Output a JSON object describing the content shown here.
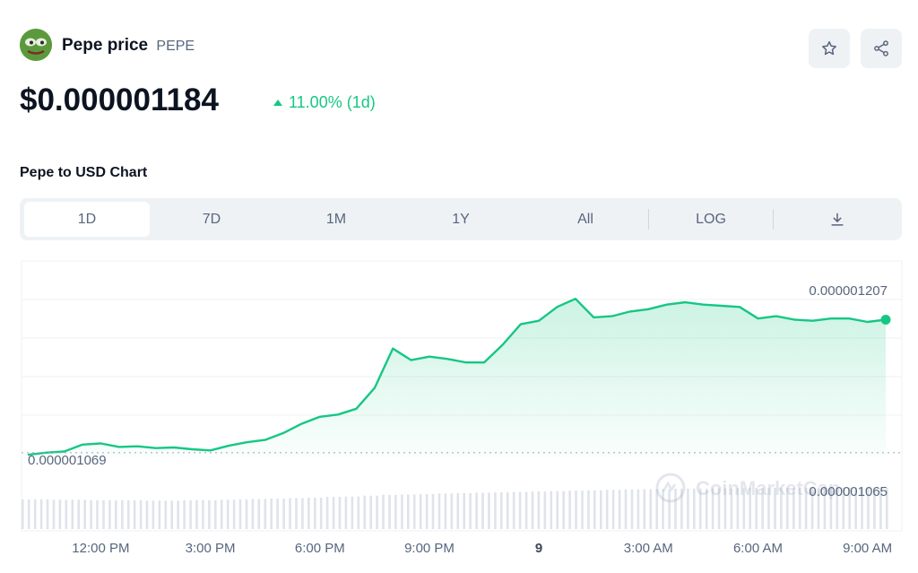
{
  "header": {
    "name": "Pepe price",
    "symbol": "PEPE",
    "logo_icon": "pepe-frog-logo-icon",
    "favorite_icon": "star-icon",
    "share_icon": "share-icon"
  },
  "price": {
    "value": "$0.000001184",
    "change": "11.00% (1d)",
    "change_direction": "up",
    "change_color": "#16c784"
  },
  "chart_section": {
    "title": "Pepe to USD Chart",
    "tabs": [
      {
        "label": "1D",
        "active": true
      },
      {
        "label": "7D",
        "active": false
      },
      {
        "label": "1M",
        "active": false
      },
      {
        "label": "1Y",
        "active": false
      },
      {
        "label": "All",
        "active": false
      },
      {
        "label": "LOG",
        "active": false
      }
    ],
    "download_icon": "download-icon"
  },
  "chart_data": {
    "type": "area",
    "title": "",
    "xlabel": "",
    "ylabel": "",
    "series": [
      {
        "color": "#16c784",
        "x": [
          "10:00 AM",
          "10:30 AM",
          "11:00 AM",
          "11:30 AM",
          "12:00 PM",
          "12:30 PM",
          "1:00 PM",
          "1:30 PM",
          "2:00 PM",
          "2:30 PM",
          "3:00 PM",
          "3:30 PM",
          "4:00 PM",
          "4:30 PM",
          "5:00 PM",
          "5:30 PM",
          "6:00 PM",
          "6:30 PM",
          "7:00 PM",
          "7:30 PM",
          "8:00 PM",
          "8:30 PM",
          "9:00 PM",
          "9:30 PM",
          "10:00 PM",
          "10:30 PM",
          "11:00 PM",
          "11:30 PM",
          "12:00 AM",
          "12:30 AM",
          "1:00 AM",
          "1:30 AM",
          "2:00 AM",
          "2:30 AM",
          "3:00 AM",
          "3:30 AM",
          "4:00 AM",
          "4:30 AM",
          "5:00 AM",
          "5:30 AM",
          "6:00 AM",
          "6:30 AM",
          "7:00 AM",
          "7:30 AM",
          "8:00 AM",
          "8:30 AM",
          "9:00 AM",
          "9:30 AM"
        ],
        "values": [
          1.0672e-06,
          1.069e-06,
          1.07e-06,
          1.076e-06,
          1.077e-06,
          1.074e-06,
          1.0745e-06,
          1.073e-06,
          1.0735e-06,
          1.072e-06,
          1.071e-06,
          1.075e-06,
          1.078e-06,
          1.08e-06,
          1.086e-06,
          1.094e-06,
          1.1e-06,
          1.102e-06,
          1.107e-06,
          1.125e-06,
          1.159e-06,
          1.149e-06,
          1.152e-06,
          1.15e-06,
          1.147e-06,
          1.147e-06,
          1.162e-06,
          1.18e-06,
          1.183e-06,
          1.195e-06,
          1.202e-06,
          1.186e-06,
          1.187e-06,
          1.191e-06,
          1.193e-06,
          1.197e-06,
          1.199e-06,
          1.197e-06,
          1.196e-06,
          1.195e-06,
          1.185e-06,
          1.187e-06,
          1.184e-06,
          1.183e-06,
          1.185e-06,
          1.185e-06,
          1.182e-06,
          1.184e-06
        ]
      }
    ],
    "ylim": [
      1.065e-06,
      1.22e-06
    ],
    "high_label": "0.000001207",
    "low_label": "0.000001069",
    "low_value": 1.069e-06,
    "min_label": "0.000001065",
    "x_ticks": [
      "12:00 PM",
      "3:00 PM",
      "6:00 PM",
      "9:00 PM",
      "9",
      "3:00 AM",
      "6:00 AM",
      "9:00 AM"
    ],
    "x_tick_index": [
      4,
      10,
      16,
      22,
      28,
      34,
      40,
      46
    ],
    "volume_values": [
      0.72,
      0.72,
      0.71,
      0.71,
      0.7,
      0.7,
      0.7,
      0.69,
      0.69,
      0.7,
      0.7,
      0.71,
      0.72,
      0.73,
      0.74,
      0.75,
      0.76,
      0.78,
      0.79,
      0.81,
      0.83,
      0.84,
      0.85,
      0.86,
      0.87,
      0.88,
      0.89,
      0.9,
      0.91,
      0.92,
      0.93,
      0.94,
      0.95,
      0.96,
      0.97,
      0.97,
      0.98,
      0.98,
      0.99,
      0.99,
      1.0,
      1.0,
      1.0,
      1.0,
      1.0,
      1.0,
      1.0,
      1.0
    ],
    "grid": true,
    "watermark": "CoinMarketCap"
  }
}
